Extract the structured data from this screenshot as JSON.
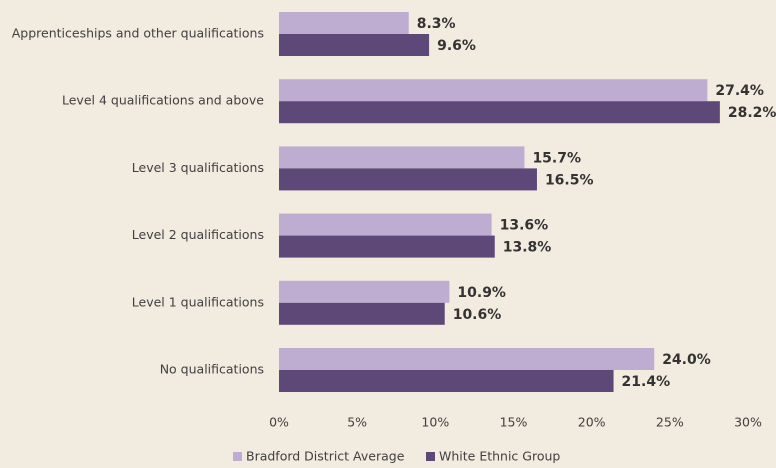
{
  "chart_data": {
    "type": "bar",
    "orientation": "horizontal",
    "categories": [
      "Apprenticeships and other qualifications",
      "Level 4 qualifications and above",
      "Level 3 qualifications",
      "Level 2 qualifications",
      "Level 1 qualifications",
      "No qualifications"
    ],
    "series": [
      {
        "name": "Bradford District Average",
        "color": "#bfadd1",
        "values": [
          8.3,
          27.4,
          15.7,
          13.6,
          10.9,
          24.0
        ],
        "value_labels": [
          "8.3%",
          "27.4%",
          "15.7%",
          "13.6%",
          "10.9%",
          "24.0%"
        ]
      },
      {
        "name": "White Ethnic Group",
        "color": "#5e4878",
        "values": [
          9.6,
          28.2,
          16.5,
          13.8,
          10.6,
          21.4
        ],
        "value_labels": [
          "9.6%",
          "28.2%",
          "16.5%",
          "13.8%",
          "10.6%",
          "21.4%"
        ]
      }
    ],
    "xlim": [
      0,
      30
    ],
    "xticks": [
      {
        "value": 0,
        "label": "0%"
      },
      {
        "value": 5,
        "label": "5%"
      },
      {
        "value": 10,
        "label": "10%"
      },
      {
        "value": 15,
        "label": "15%"
      },
      {
        "value": 20,
        "label": "20%"
      },
      {
        "value": 25,
        "label": "25%"
      },
      {
        "value": 30,
        "label": "30%"
      }
    ],
    "grid": false,
    "legend": "bottom"
  }
}
